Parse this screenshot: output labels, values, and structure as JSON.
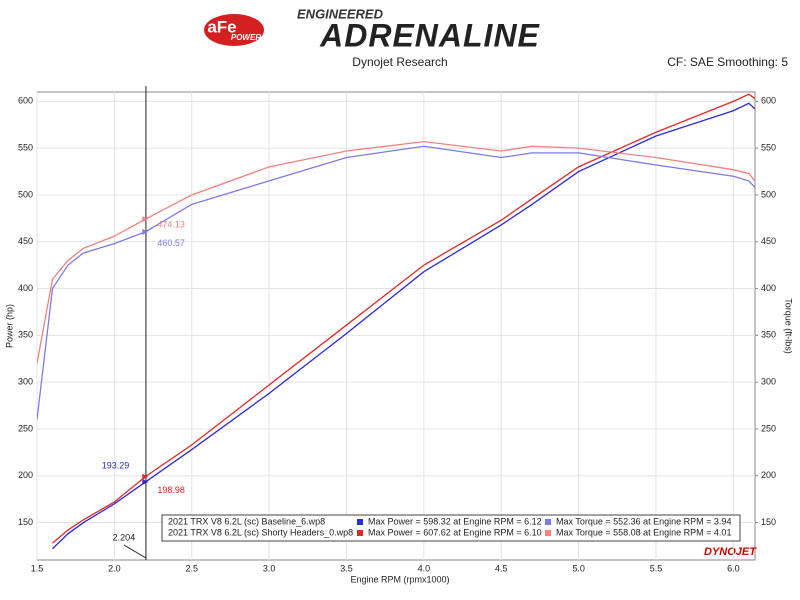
{
  "header": {
    "logo": "aFe",
    "logo_sub": "POWER",
    "kicker": "ENGINEERED",
    "title": "ADRENALINE",
    "source": "Dynojet Research",
    "settings": "CF: SAE Smoothing: 5",
    "brand": "DYNOJET"
  },
  "chart_data": {
    "type": "line",
    "x_label": "Engine RPM (rpmx1000)",
    "y_label": "Power (hp)",
    "y2_label": "Torque (ft-lbs)",
    "x": [
      1.5,
      1.6,
      1.7,
      1.8,
      2.0,
      2.2,
      2.5,
      3.0,
      3.5,
      4.0,
      4.5,
      4.7,
      5.0,
      5.5,
      6.0,
      6.1,
      6.14
    ],
    "series": [
      {
        "color": "#2b2bd6",
        "axis": "y",
        "values": [
          null,
          122,
          138,
          150,
          170,
          193.29,
          228,
          288,
          352,
          418,
          468,
          490,
          525,
          563,
          590,
          598,
          592
        ]
      },
      {
        "color": "#e02828",
        "axis": "y",
        "values": [
          null,
          128,
          142,
          153,
          172,
          198.98,
          233,
          297,
          361,
          425,
          473,
          496,
          530,
          567,
          600,
          607.62,
          603
        ]
      },
      {
        "color": "#7b7be6",
        "axis": "y2",
        "values": [
          260,
          400,
          425,
          438,
          448,
          460.57,
          490,
          515,
          540,
          552,
          540,
          545,
          545,
          532,
          520,
          515,
          508
        ]
      },
      {
        "color": "#f08282",
        "axis": "y2",
        "values": [
          320,
          410,
          430,
          443,
          456,
          474.13,
          500,
          530,
          547,
          557,
          547,
          552,
          550,
          540,
          527,
          523,
          515
        ]
      }
    ],
    "cursor": 2.204,
    "xlim": [
      1.5,
      6.14
    ],
    "xticks": [
      1.5,
      {
        "value": 2,
        "label": "2.0"
      },
      2.5,
      {
        "value": 3,
        "label": "3.0"
      },
      3.5,
      {
        "value": 4,
        "label": "4.0"
      },
      4.5,
      {
        "value": 5,
        "label": "5.0"
      },
      5.5,
      {
        "value": 6,
        "label": "6.0"
      }
    ],
    "ylim": [
      110,
      610
    ],
    "yticks": [
      150,
      200,
      250,
      300,
      350,
      400,
      450,
      500,
      550,
      600
    ],
    "y2lim": [
      110,
      610
    ],
    "y2ticks": [
      150,
      200,
      250,
      300,
      350,
      400,
      450,
      500,
      550,
      600
    ],
    "grid": true,
    "legend": [
      {
        "run": "2021 TRX V8 6.2L (sc) Baseline_6.wp8",
        "power": "Max Power = 598.32 at Engine RPM = 6.12",
        "power_color": "#2b2bd6",
        "torque": "Max Torque = 552.36 at Engine RPM = 3.94",
        "torque_color": "#7b7be6"
      },
      {
        "run": "2021 TRX V8 6.2L (sc) Shorty Headers_0.wp8",
        "power": "Max Power = 607.62 at Engine RPM = 6.10",
        "power_color": "#e02828",
        "torque": "Max Torque = 558.08 at Engine RPM = 4.01",
        "torque_color": "#f08282"
      }
    ]
  }
}
